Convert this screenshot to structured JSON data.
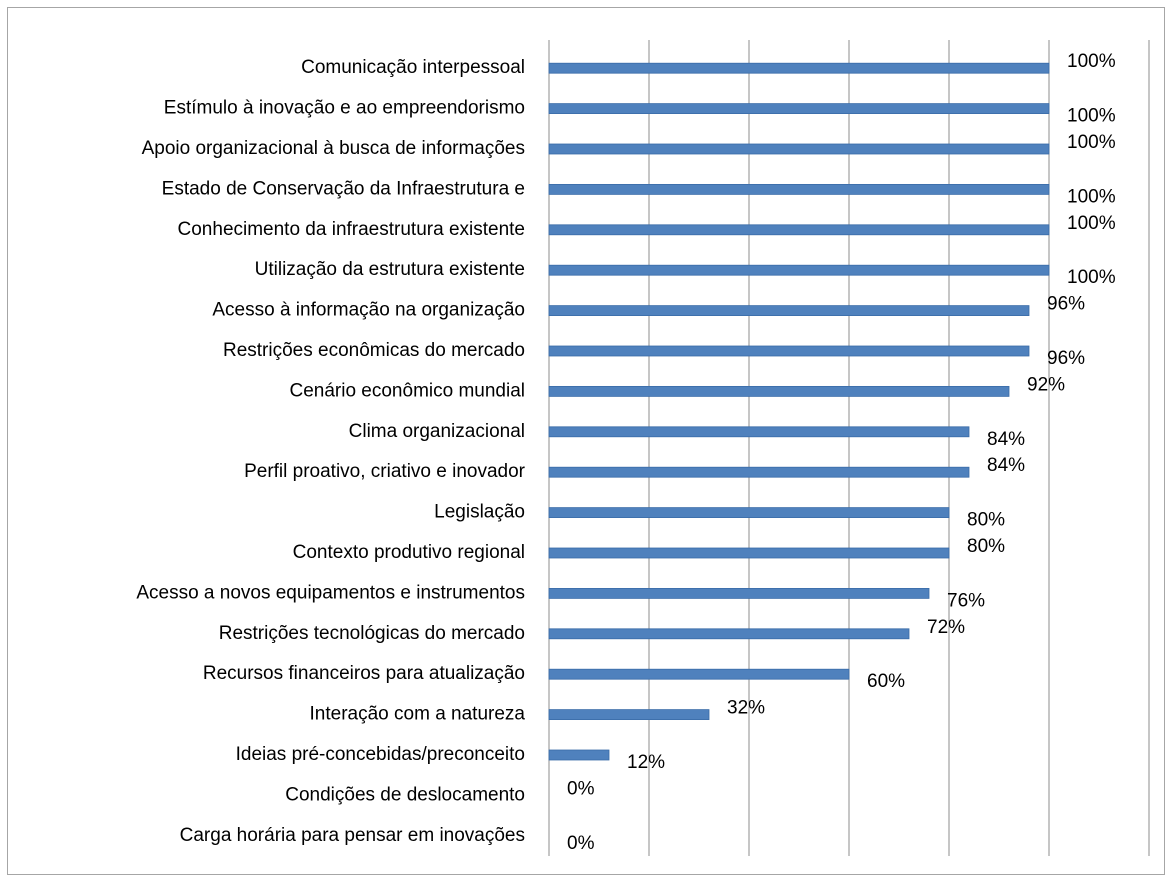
{
  "chart_data": {
    "type": "bar",
    "orientation": "horizontal",
    "categories": [
      "Comunicação interpessoal",
      "Estímulo à inovação e ao empreendorismo",
      "Apoio organizacional à busca de informações",
      "Estado de Conservação da Infraestrutura e",
      "Conhecimento da infraestrutura existente",
      "Utilização da estrutura existente",
      "Acesso à informação na organização",
      "Restrições econômicas do mercado",
      "Cenário econômico mundial",
      "Clima organizacional",
      "Perfil proativo, criativo e inovador",
      "Legislação",
      "Contexto produtivo regional",
      "Acesso a novos equipamentos e instrumentos",
      "Restrições tecnológicas do mercado",
      "Recursos financeiros para atualização",
      "Interação com a natureza",
      "Ideias pré-concebidas/preconceito",
      "Condições de deslocamento",
      "Carga horária para pensar em inovações"
    ],
    "values": [
      100,
      100,
      100,
      100,
      100,
      100,
      96,
      96,
      92,
      84,
      84,
      80,
      80,
      76,
      72,
      60,
      32,
      12,
      0,
      0
    ],
    "value_labels": [
      "100%",
      "100%",
      "100%",
      "100%",
      "100%",
      "100%",
      "96%",
      "96%",
      "92%",
      "84%",
      "84%",
      "80%",
      "80%",
      "76%",
      "72%",
      "60%",
      "32%",
      "12%",
      "0%",
      "0%"
    ],
    "color": "#4f81bd",
    "xlim": [
      0,
      120
    ],
    "xticks": [
      0,
      20,
      40,
      60,
      80,
      100,
      120
    ],
    "grid": true
  }
}
